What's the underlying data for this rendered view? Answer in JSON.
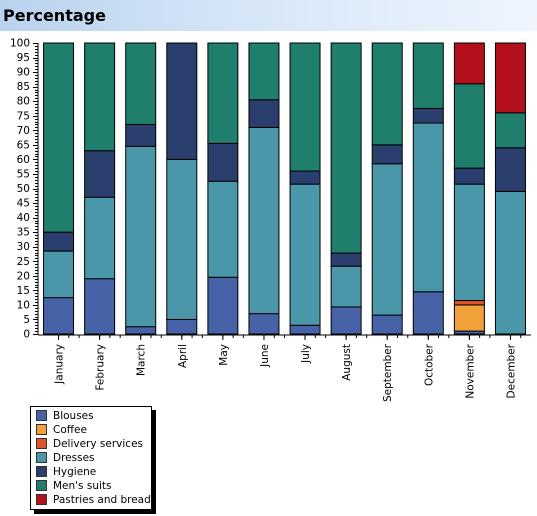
{
  "header": {
    "title": "Percentage"
  },
  "chart_data": {
    "type": "bar",
    "stacked": true,
    "title": "Percentage",
    "categories": [
      "January",
      "February",
      "March",
      "April",
      "May",
      "June",
      "July",
      "August",
      "September",
      "October",
      "November",
      "December"
    ],
    "ylim": [
      0,
      100
    ],
    "yticks": [
      0,
      5,
      10,
      15,
      20,
      25,
      30,
      35,
      40,
      45,
      50,
      55,
      60,
      65,
      70,
      75,
      80,
      85,
      90,
      95,
      100
    ],
    "grid": false,
    "legend_position": "bottom-left",
    "series": [
      {
        "name": "Blouses",
        "color": "#4762a6",
        "values": [
          12.5,
          19,
          2.5,
          5,
          19.5,
          7,
          3,
          9.3,
          6.5,
          14.5,
          1,
          0
        ]
      },
      {
        "name": "Coffee",
        "color": "#f0a13a",
        "values": [
          0,
          0,
          0,
          0,
          0,
          0,
          0,
          0,
          0,
          0,
          9,
          0
        ]
      },
      {
        "name": "Delivery services",
        "color": "#e0542a",
        "values": [
          0,
          0,
          0,
          0,
          0,
          0,
          0,
          0,
          0,
          0,
          1.5,
          0
        ]
      },
      {
        "name": "Dresses",
        "color": "#4b97aa",
        "values": [
          16,
          28,
          62,
          55,
          33,
          64,
          48.5,
          14,
          52,
          58,
          40,
          49
        ]
      },
      {
        "name": "Hygiene",
        "color": "#2a3f6e",
        "values": [
          6.5,
          16,
          7.5,
          40,
          13,
          9.5,
          4.5,
          4.5,
          6.5,
          5,
          5.5,
          15
        ]
      },
      {
        "name": "Men's suits",
        "color": "#207e6c",
        "values": [
          65,
          37,
          28,
          0,
          34.5,
          19.5,
          44,
          72.2,
          35,
          22.5,
          29,
          12
        ]
      },
      {
        "name": "Pastries and bread",
        "color": "#b3101c",
        "values": [
          0,
          0,
          0,
          0,
          0,
          0,
          0,
          0,
          0,
          0,
          14,
          24
        ]
      }
    ]
  }
}
